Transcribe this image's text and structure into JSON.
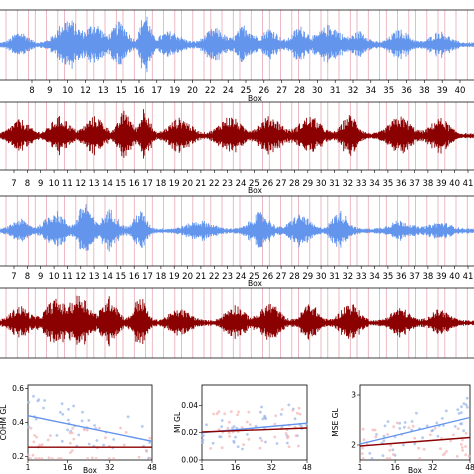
{
  "colors": {
    "blue": "#6495ED",
    "dark_red": "#8B0000",
    "box_line": "#E7A9B5",
    "scatter_red": "#F4B6B6",
    "scatter_blue": "#9DB8EA"
  },
  "chart_data": [
    {
      "type": "line",
      "panel": "waveform-1",
      "series_color": "blue",
      "xlabel": "Box",
      "x_tick_labels": [
        "8",
        "9",
        "10",
        "12",
        "13",
        "15",
        "16",
        "17",
        "19",
        "20",
        "22",
        "24",
        "25",
        "26",
        "27",
        "28",
        "30",
        "31",
        "32",
        "34",
        "35",
        "36",
        "38",
        "39",
        "40"
      ],
      "box_markers": 48
    },
    {
      "type": "line",
      "panel": "waveform-2",
      "series_color": "dark_red",
      "xlabel": "Box",
      "x_tick_labels": [
        "7",
        "8",
        "9",
        "10",
        "11",
        "12",
        "13",
        "14",
        "15",
        "16",
        "17",
        "18",
        "19",
        "20",
        "21",
        "22",
        "23",
        "24",
        "25",
        "26",
        "27",
        "28",
        "29",
        "30",
        "31",
        "32",
        "33",
        "34",
        "35",
        "36",
        "37",
        "38",
        "39",
        "40",
        "41"
      ],
      "box_markers": 48
    },
    {
      "type": "line",
      "panel": "waveform-3",
      "series_color": "blue",
      "xlabel": "Box",
      "x_tick_labels": [
        "7",
        "8",
        "9",
        "10",
        "11",
        "12",
        "13",
        "14",
        "15",
        "16",
        "17",
        "18",
        "19",
        "20",
        "21",
        "22",
        "23",
        "24",
        "25",
        "26",
        "27",
        "28",
        "29",
        "30",
        "31",
        "32",
        "33",
        "34",
        "35",
        "36",
        "37",
        "38",
        "39",
        "40",
        "41"
      ],
      "box_markers": 48
    },
    {
      "type": "line",
      "panel": "waveform-4",
      "series_color": "dark_red",
      "xlabel": "Box",
      "x_tick_labels": [],
      "box_markers": 48
    },
    {
      "type": "scatter",
      "panel": "scatter-cohm",
      "ylabel": "COHM GL",
      "xlabel": "Box",
      "xlim": [
        1,
        48
      ],
      "ylim": [
        0.18,
        0.62
      ],
      "x_ticks": [
        1,
        16,
        32,
        48
      ],
      "y_ticks": [
        0.2,
        0.4,
        0.6
      ],
      "y_tick_labels": [
        "0.2",
        "0.4",
        "0.6"
      ],
      "series": [
        {
          "color": "blue",
          "fit": [
            [
              1,
              0.44
            ],
            [
              48,
              0.29
            ]
          ]
        },
        {
          "color": "dark_red",
          "fit": [
            [
              1,
              0.255
            ],
            [
              48,
              0.255
            ]
          ]
        }
      ]
    },
    {
      "type": "scatter",
      "panel": "scatter-mi",
      "ylabel": "MI GL",
      "xlabel": "",
      "xlim": [
        1,
        48
      ],
      "ylim": [
        0.0,
        0.055
      ],
      "x_ticks": [
        1,
        16,
        32,
        48
      ],
      "y_ticks": [
        0.0,
        0.02,
        0.04
      ],
      "y_tick_labels": [
        "0.00",
        "0.02",
        "0.04"
      ],
      "series": [
        {
          "color": "blue",
          "fit": [
            [
              1,
              0.02
            ],
            [
              48,
              0.027
            ]
          ]
        },
        {
          "color": "dark_red",
          "fit": [
            [
              1,
              0.0205
            ],
            [
              48,
              0.0235
            ]
          ]
        }
      ]
    },
    {
      "type": "scatter",
      "panel": "scatter-mse",
      "ylabel": "MSE GL",
      "xlabel": "Box",
      "xlim": [
        1,
        48
      ],
      "ylim": [
        1.7,
        3.2
      ],
      "x_ticks": [
        1,
        16,
        32,
        48
      ],
      "y_ticks": [
        2,
        3
      ],
      "y_tick_labels": [
        "2",
        "3"
      ],
      "series": [
        {
          "color": "blue",
          "fit": [
            [
              1,
              2.02
            ],
            [
              48,
              2.55
            ]
          ]
        },
        {
          "color": "dark_red",
          "fit": [
            [
              1,
              1.98
            ],
            [
              48,
              2.15
            ]
          ]
        }
      ]
    }
  ]
}
